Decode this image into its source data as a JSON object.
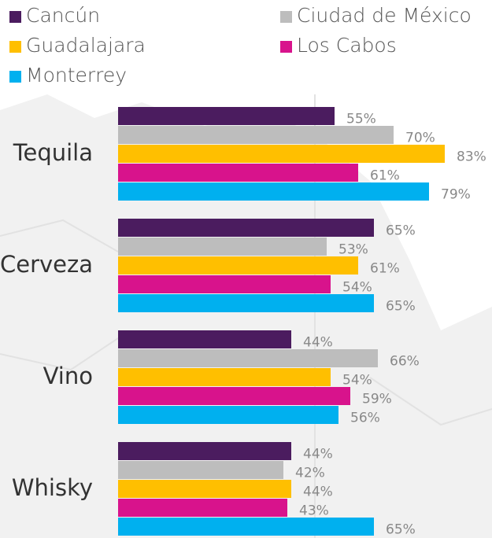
{
  "chart_data": {
    "type": "bar",
    "orientation": "horizontal",
    "categories": [
      "Tequila",
      "Cerveza",
      "Vino",
      "Whisky"
    ],
    "series": [
      {
        "name": "Cancún",
        "color": "#4b1c5f",
        "values": [
          55,
          65,
          44,
          44
        ],
        "value_labels": [
          "55%",
          "65%",
          "44%",
          "44%"
        ]
      },
      {
        "name": "Ciudad de México",
        "color": "#bdbdbd",
        "values": [
          70,
          53,
          66,
          42
        ],
        "value_labels": [
          "70%",
          "53%",
          "66%",
          "42%"
        ]
      },
      {
        "name": "Guadalajara",
        "color": "#ffbf00",
        "values": [
          83,
          61,
          54,
          44
        ],
        "value_labels": [
          "83%",
          "61%",
          "54%",
          "44%"
        ]
      },
      {
        "name": "Los Cabos",
        "color": "#d8138c",
        "values": [
          61,
          54,
          59,
          43
        ],
        "value_labels": [
          "61%",
          "54%",
          "59%",
          "43%"
        ]
      },
      {
        "name": "Monterrey",
        "color": "#00b0ef",
        "values": [
          79,
          65,
          56,
          65
        ],
        "value_labels": [
          "79%",
          "65%",
          "56%",
          "65%"
        ]
      }
    ],
    "legend": "top"
  }
}
